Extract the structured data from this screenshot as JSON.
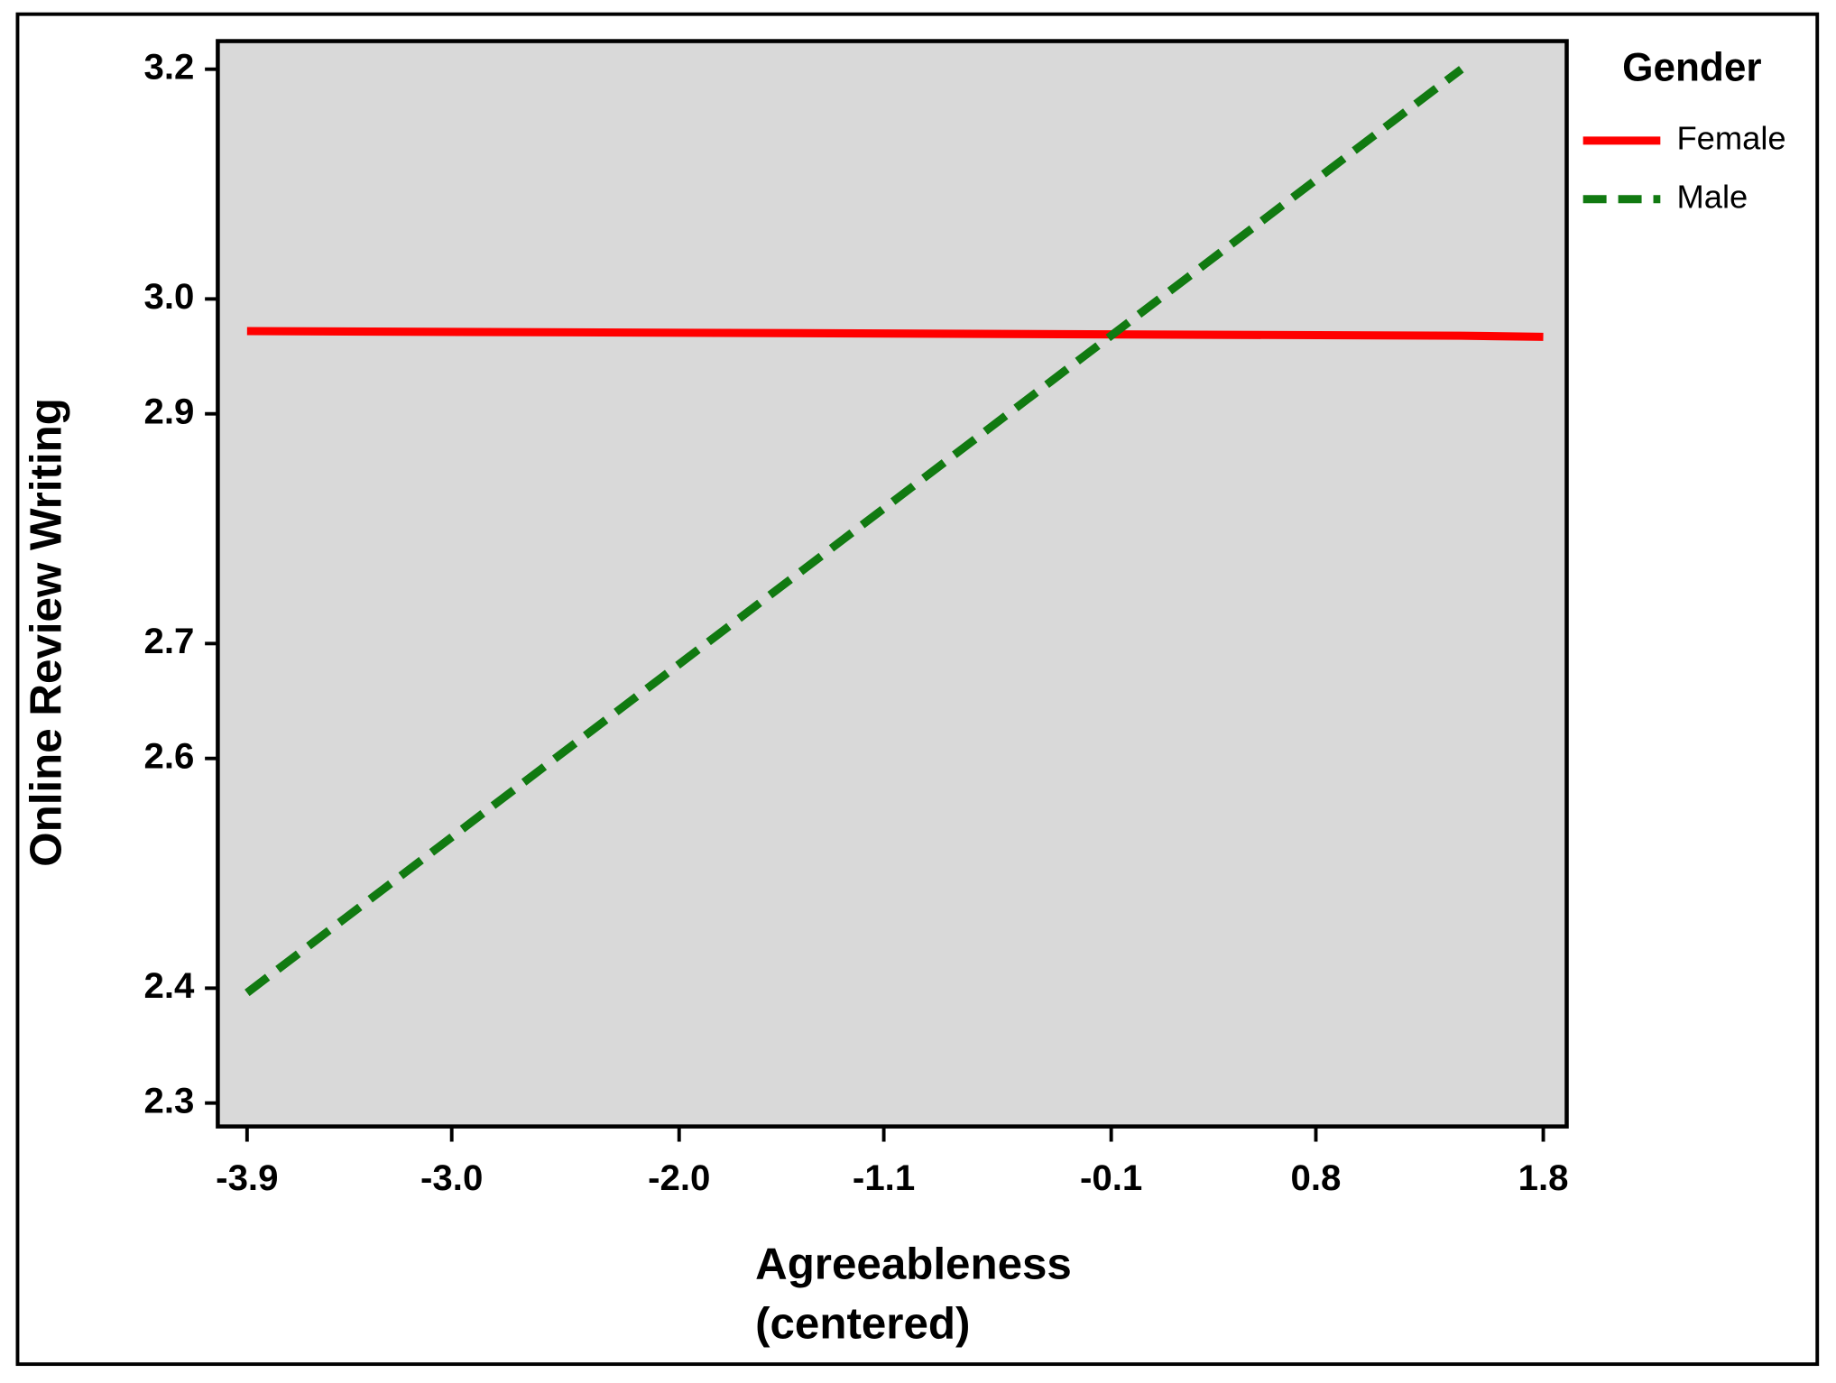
{
  "chart_data": {
    "type": "line",
    "ylabel": "Online Review Writing",
    "xlabel": [
      "Agreeableness",
      "(centered)"
    ],
    "legend_title": "Gender",
    "legend": "outside-right",
    "x": [
      -3.9,
      1.44,
      1.8
    ],
    "series": [
      {
        "name": "Female",
        "color": "#ff0000",
        "dash": "solid",
        "values": [
          2.972,
          2.968,
          2.967
        ]
      },
      {
        "name": "Male",
        "color": "#117a11",
        "dash": "dashed",
        "values": [
          2.396,
          3.2,
          null
        ]
      }
    ],
    "xlim": [
      -3.9,
      1.8
    ],
    "xticks": [
      -3.9,
      {
        "value": -3.0,
        "label": "-3.0"
      },
      {
        "value": -2.0,
        "label": "-2.0"
      },
      -1.1,
      -0.1,
      0.8,
      1.8
    ],
    "ylim": [
      2.3,
      3.2
    ],
    "yticks": [
      2.3,
      2.4,
      2.6,
      2.7,
      2.9,
      {
        "value": 3.0,
        "label": "3.0"
      },
      3.2
    ]
  }
}
